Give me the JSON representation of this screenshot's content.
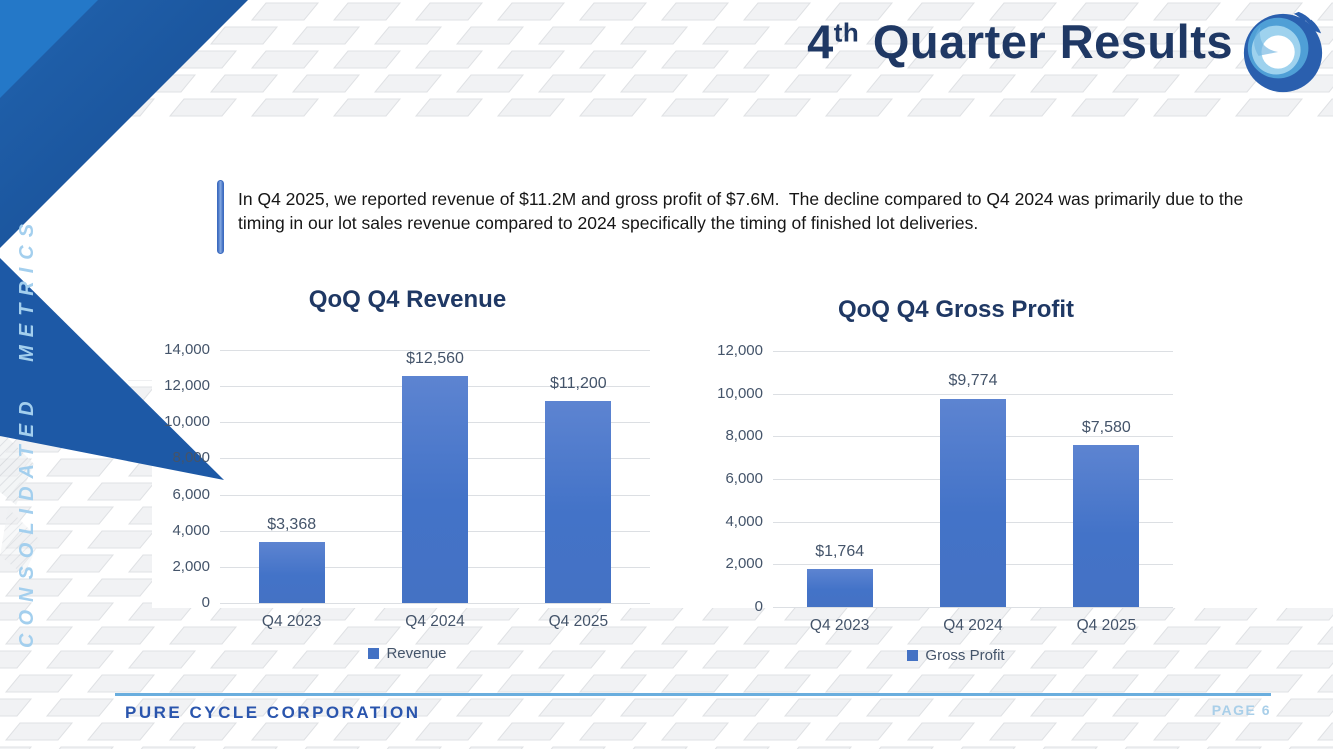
{
  "header": {
    "title_number": "4",
    "title_superscript": "th",
    "title_rest": " Quarter Results",
    "logo_icon": "swirl-water-logo"
  },
  "sidebar": {
    "label": "CONSOLIDATED METRICS"
  },
  "callout": {
    "text": "In Q4 2025, we reported revenue of $11.2M and gross profit of $7.6M.  The decline compared to Q4 2024 was primarily due to the timing in our lot sales revenue compared to 2024 specifically the timing of finished lot deliveries."
  },
  "footer": {
    "company": "PURE CYCLE CORPORATION",
    "page_label": "PAGE 6"
  },
  "colors": {
    "title_navy": "#1f3864",
    "bar_blue": "#4472c4",
    "axis_text": "#44546a",
    "footer_rule_blue": "#6aaede",
    "footer_company_blue": "#2a55ad",
    "page_label_blue": "#a9cfe9",
    "sidebar_text_blue": "#a3cfee",
    "decor_dark_blue": "#1c55a0",
    "decor_light_blue": "#2478c8"
  },
  "chart_data": [
    {
      "type": "bar",
      "title": "QoQ Q4 Revenue",
      "categories": [
        "Q4 2023",
        "Q4 2024",
        "Q4 2025"
      ],
      "series": [
        {
          "name": "Revenue",
          "values": [
            3368,
            12560,
            11200
          ]
        }
      ],
      "data_labels": [
        "$3,368",
        "$12,560",
        "$11,200"
      ],
      "xlabel": "",
      "ylabel": "",
      "ylim": [
        0,
        14000
      ],
      "ytick_step": 2000,
      "grid": true,
      "legend_position": "bottom",
      "bar_color": "#4472c4"
    },
    {
      "type": "bar",
      "title": "QoQ Q4 Gross Profit",
      "categories": [
        "Q4 2023",
        "Q4 2024",
        "Q4 2025"
      ],
      "series": [
        {
          "name": "Gross Profit",
          "values": [
            1764,
            9774,
            7580
          ]
        }
      ],
      "data_labels": [
        "$1,764",
        "$9,774",
        "$7,580"
      ],
      "xlabel": "",
      "ylabel": "",
      "ylim": [
        0,
        12000
      ],
      "ytick_step": 2000,
      "grid": true,
      "legend_position": "bottom",
      "bar_color": "#4472c4"
    }
  ]
}
